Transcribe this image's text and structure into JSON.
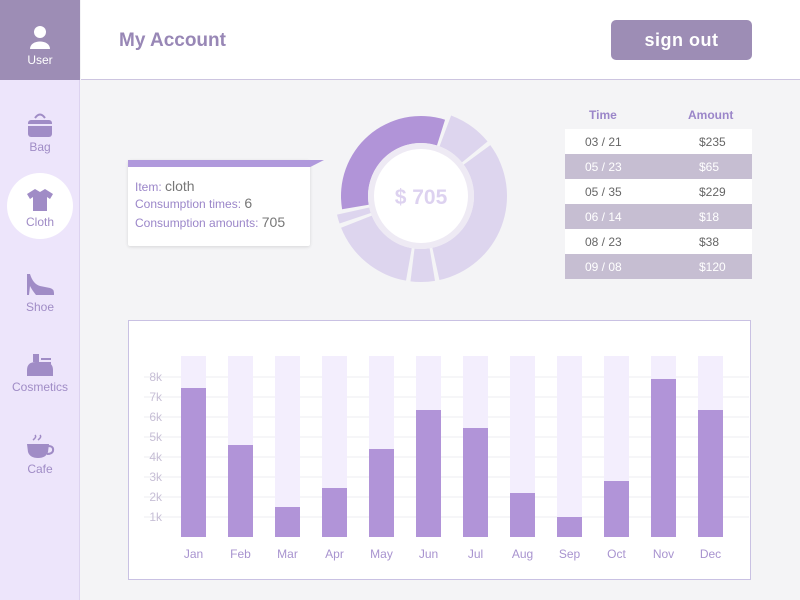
{
  "sidebar": {
    "user_label": "User",
    "items": [
      {
        "label": "Bag",
        "icon": "bag-icon",
        "active": false
      },
      {
        "label": "Cloth",
        "icon": "shirt-icon",
        "active": true
      },
      {
        "label": "Shoe",
        "icon": "high-heel-icon",
        "active": false
      },
      {
        "label": "Cosmetics",
        "icon": "cosmetics-icon",
        "active": false
      },
      {
        "label": "Cafe",
        "icon": "coffee-cup-icon",
        "active": false
      }
    ]
  },
  "header": {
    "title": "My Account",
    "signout_label": "sign out"
  },
  "tooltip": {
    "item_label": "Item:",
    "item_value": "cloth",
    "times_label": "Consumption times:",
    "times_value": "6",
    "amounts_label": "Consumption amounts:",
    "amounts_value": "705"
  },
  "donut": {
    "center_label": "$ 705",
    "segments": [
      {
        "value": 65,
        "highlight": false
      },
      {
        "value": 229,
        "highlight": false
      },
      {
        "value": 38,
        "highlight": false
      },
      {
        "value": 120,
        "highlight": false
      },
      {
        "value": 18,
        "highlight": false
      },
      {
        "value": 235,
        "highlight": true
      }
    ]
  },
  "table": {
    "headers": [
      "Time",
      "Amount"
    ],
    "rows": [
      {
        "time": "03 / 21",
        "amount": "$235"
      },
      {
        "time": "05 / 23",
        "amount": "$65"
      },
      {
        "time": "05 / 35",
        "amount": "$229"
      },
      {
        "time": "06 / 14",
        "amount": "$18"
      },
      {
        "time": "08 / 23",
        "amount": "$38"
      },
      {
        "time": "09 / 08",
        "amount": "$120"
      }
    ]
  },
  "chart_data": {
    "type": "bar",
    "categories": [
      "Jan",
      "Feb",
      "Mar",
      "Apr",
      "May",
      "Jun",
      "Jul",
      "Aug",
      "Sep",
      "Oct",
      "Nov",
      "Dec"
    ],
    "values": [
      7450,
      4600,
      1500,
      2450,
      4400,
      6350,
      5450,
      2200,
      1000,
      2800,
      7900,
      6350
    ],
    "yticks": [
      "1k",
      "2k",
      "3k",
      "4k",
      "5k",
      "6k",
      "7k",
      "8k"
    ],
    "ylim": [
      0,
      9000
    ],
    "grid": true,
    "colors": {
      "bar": "#b194d8",
      "track": "#f3eefd",
      "grid": "#ececf2",
      "label": "#a893cf"
    }
  },
  "colors": {
    "accent": "#9d8db5",
    "accent_light": "#ede5fb",
    "highlight": "#b194d8"
  }
}
